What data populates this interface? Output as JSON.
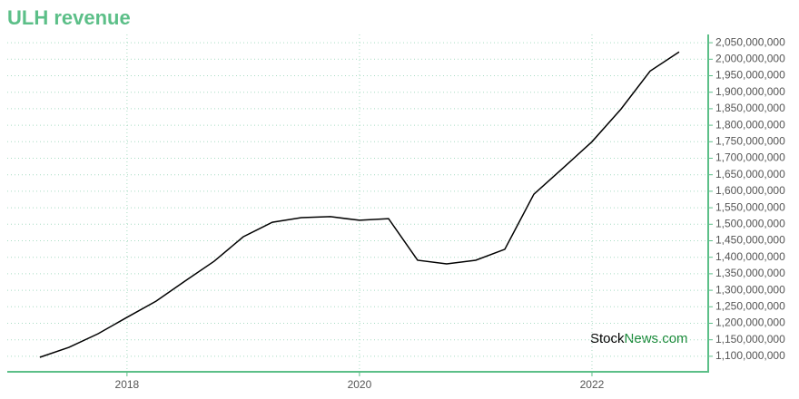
{
  "chart_data": {
    "type": "line",
    "title": "ULH revenue",
    "watermark": {
      "brand": "Stock",
      "suffix": "News.com"
    },
    "x": [
      2017.25,
      2017.5,
      2017.75,
      2018.0,
      2018.25,
      2018.5,
      2018.75,
      2019.0,
      2019.25,
      2019.5,
      2019.75,
      2020.0,
      2020.25,
      2020.5,
      2020.75,
      2021.0,
      2021.25,
      2021.5,
      2021.75,
      2022.0,
      2022.25,
      2022.5,
      2022.75
    ],
    "series": [
      {
        "name": "ULH revenue",
        "color": "#000000",
        "values": [
          1097000000,
          1127000000,
          1168000000,
          1218000000,
          1267000000,
          1328000000,
          1388000000,
          1462000000,
          1506000000,
          1520000000,
          1523000000,
          1512000000,
          1517000000,
          1391000000,
          1380000000,
          1391000000,
          1424000000,
          1591000000,
          1670000000,
          1750000000,
          1849000000,
          1964000000,
          2022000000
        ]
      }
    ],
    "xlim": [
      2016.97,
      2023.0
    ],
    "xticks": [
      2018,
      2020,
      2022
    ],
    "ylim": [
      1053000000,
      2075000000
    ],
    "yticks": [
      {
        "value": 1100000000,
        "label": "1,100,000,000"
      },
      {
        "value": 1150000000,
        "label": "1,150,000,000"
      },
      {
        "value": 1200000000,
        "label": "1,200,000,000"
      },
      {
        "value": 1250000000,
        "label": "1,250,000,000"
      },
      {
        "value": 1300000000,
        "label": "1,300,000,000"
      },
      {
        "value": 1350000000,
        "label": "1,350,000,000"
      },
      {
        "value": 1400000000,
        "label": "1,400,000,000"
      },
      {
        "value": 1450000000,
        "label": "1,450,000,000"
      },
      {
        "value": 1500000000,
        "label": "1,500,000,000"
      },
      {
        "value": 1550000000,
        "label": "1,550,000,000"
      },
      {
        "value": 1600000000,
        "label": "1,600,000,000"
      },
      {
        "value": 1650000000,
        "label": "1,650,000,000"
      },
      {
        "value": 1700000000,
        "label": "1,700,000,000"
      },
      {
        "value": 1750000000,
        "label": "1,750,000,000"
      },
      {
        "value": 1800000000,
        "label": "1,800,000,000"
      },
      {
        "value": 1850000000,
        "label": "1,850,000,000"
      },
      {
        "value": 1900000000,
        "label": "1,900,000,000"
      },
      {
        "value": 1950000000,
        "label": "1,950,000,000"
      },
      {
        "value": 2000000000,
        "label": "2,000,000,000"
      },
      {
        "value": 2050000000,
        "label": "2,050,000,000"
      }
    ],
    "grid": true,
    "axis_color": "#5cbf88"
  }
}
